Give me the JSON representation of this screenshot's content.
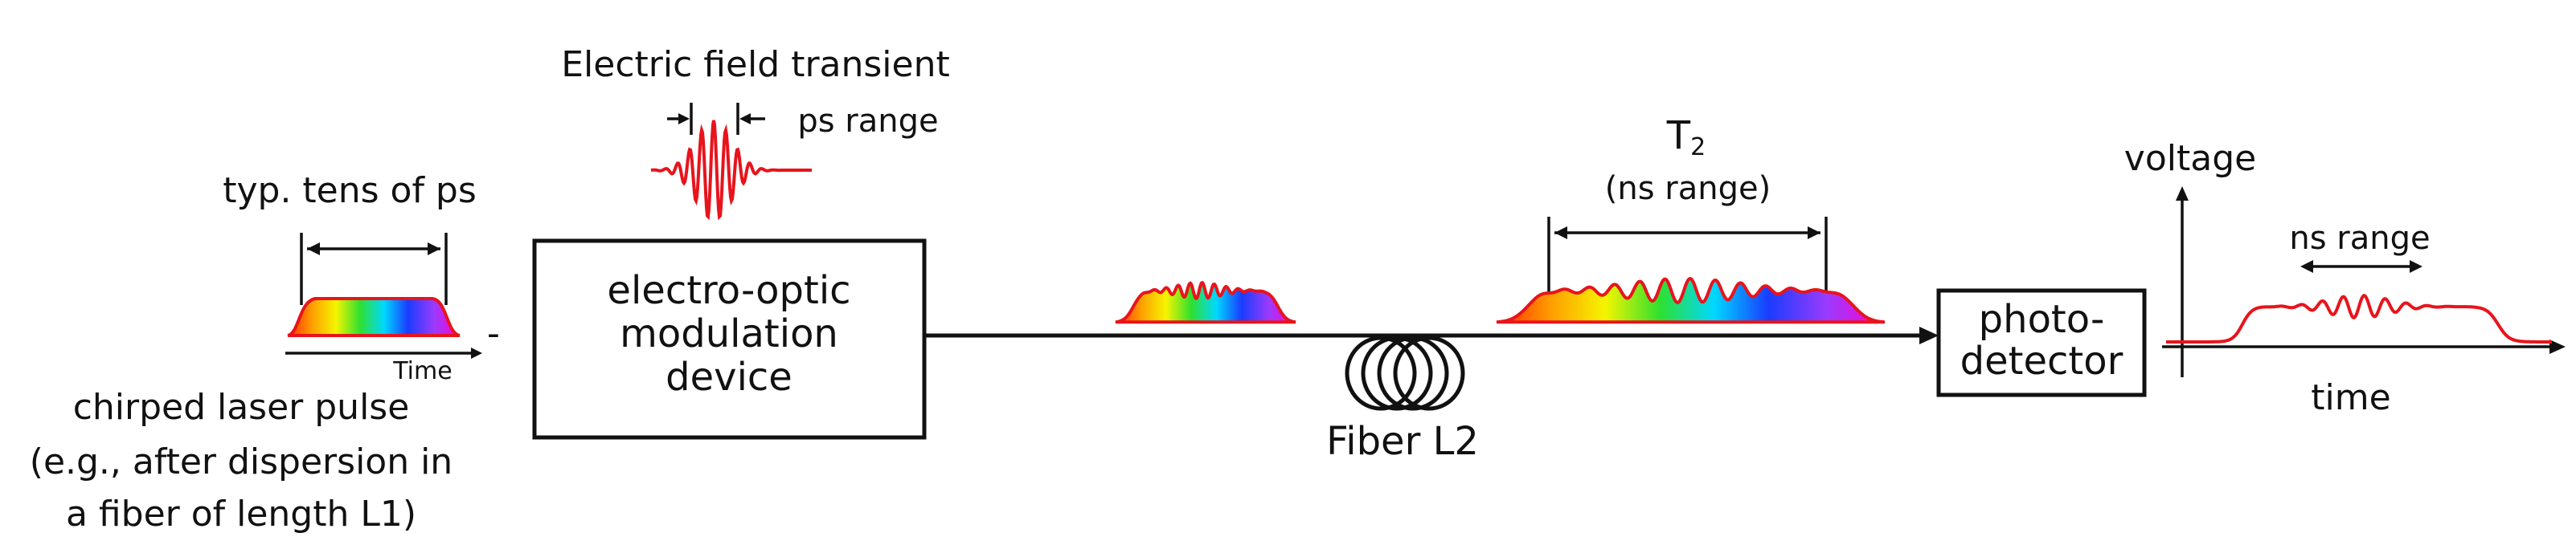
{
  "labels": {
    "pulse_duration": "typ. tens of ps",
    "time_small": "Time",
    "chirped_pulse_line1": "chirped laser pulse",
    "chirped_pulse_line2": "(e.g., after dispersion in",
    "chirped_pulse_line3": "a fiber of length L1)",
    "field_transient": "Electric field transient",
    "ps_range": "ps range",
    "eo_line1": "electro-optic",
    "eo_line2": "modulation",
    "eo_line3": "device",
    "fiber": "Fiber L2",
    "t2_symbol": "T",
    "t2_subscript": "2",
    "t2_range": "(ns range)",
    "photodetector_line1": "photo-",
    "photodetector_line2": "detector",
    "voltage": "voltage",
    "time": "time",
    "ns_range": "ns range",
    "dash": "-"
  },
  "colors": {
    "waveform": "#e8141c",
    "lines": "#111111",
    "spectrum": [
      "#ff2a00",
      "#ff9d00",
      "#f5f500",
      "#2fe02f",
      "#00d8ff",
      "#1a3cff",
      "#9a3bff",
      "#ff00d0"
    ]
  },
  "icons": [
    "fiber-coil-icon",
    "arrow-head-icon"
  ]
}
